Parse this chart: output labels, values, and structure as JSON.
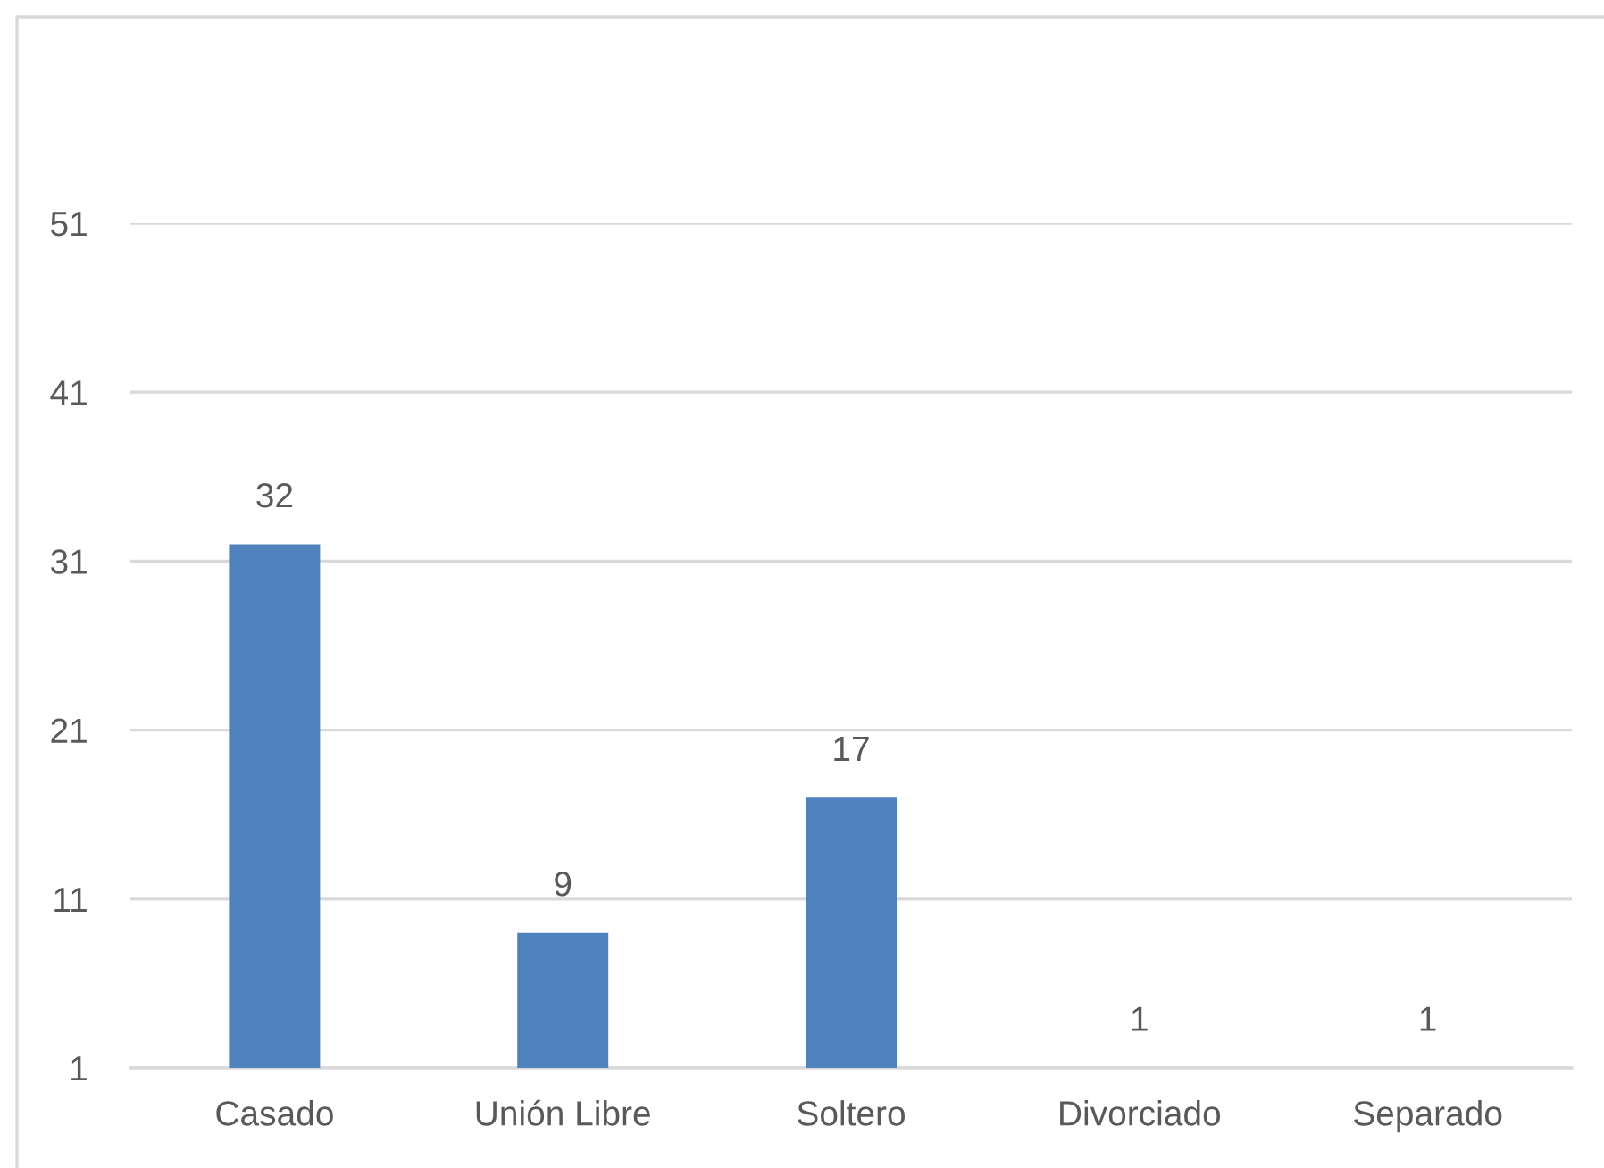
{
  "chart_data": {
    "type": "bar",
    "categories": [
      "Casado",
      "Unión Libre",
      "Soltero",
      "Divorciado",
      "Separado"
    ],
    "values": [
      32,
      9,
      17,
      1,
      1
    ],
    "color": "#4f81bd",
    "ylim": [
      1,
      51
    ],
    "yticks": [
      1,
      11,
      21,
      31,
      41,
      51
    ],
    "grid": "y",
    "data_labels": true
  }
}
